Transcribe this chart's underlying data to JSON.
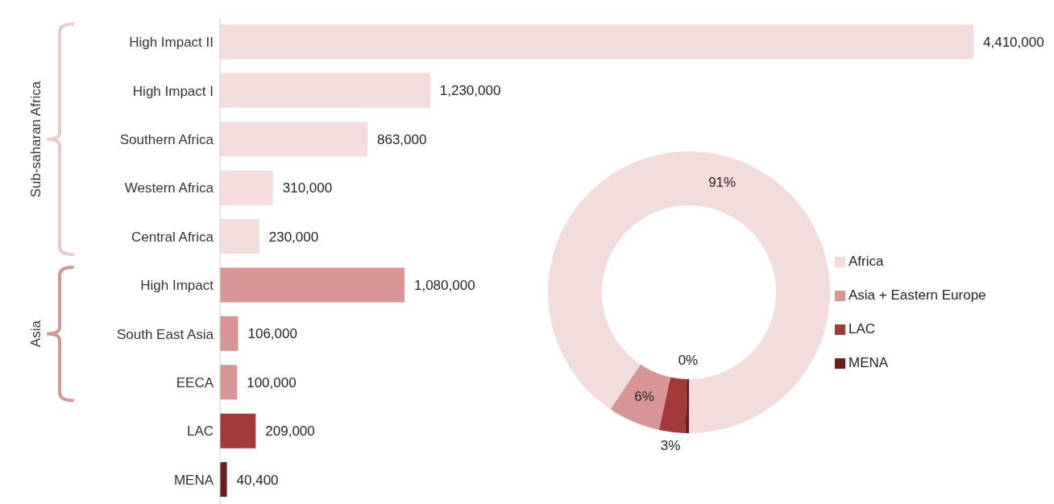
{
  "chart_data": [
    {
      "type": "bar",
      "orientation": "horizontal",
      "categories": [
        "High Impact II",
        "High Impact I",
        "Southern Africa",
        "Western Africa",
        "Central Africa",
        "High Impact",
        "South East Asia",
        "EECA",
        "LAC",
        "MENA"
      ],
      "values": [
        4410000,
        1230000,
        863000,
        310000,
        230000,
        1080000,
        106000,
        100000,
        209000,
        40400
      ],
      "colors": [
        "#f2dcdc",
        "#f2dcdc",
        "#f2dcdc",
        "#f2dcdc",
        "#f2dcdc",
        "#d99594",
        "#d99594",
        "#d99594",
        "#a33a3a",
        "#6b1c1c"
      ],
      "value_labels": [
        "4,410,000",
        "1,230,000",
        "863,000",
        "310,000",
        "230,000",
        "1,080,000",
        "106,000",
        "100,000",
        "209,000",
        "40,400"
      ],
      "annotations": [
        "Sub-saharan Africa",
        "Asia"
      ]
    },
    {
      "type": "donut",
      "categories": [
        "Africa",
        "Asia + Eastern Europe",
        "LAC",
        "MENA"
      ],
      "values": [
        90.6,
        6,
        3,
        0.4
      ],
      "colors": [
        "#f2dcdc",
        "#d99594",
        "#a33a3a",
        "#6b1c1c"
      ],
      "value_labels": [
        "91%",
        "6%",
        "3%",
        "0%"
      ],
      "legend": "right"
    }
  ]
}
